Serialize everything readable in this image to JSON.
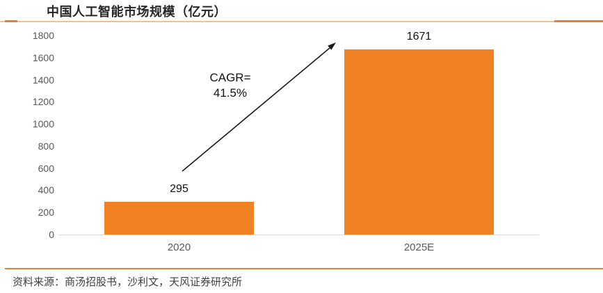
{
  "chart_data": {
    "type": "bar",
    "title": "中国人工智能市场规模（亿元）",
    "categories": [
      "2020",
      "2025E"
    ],
    "values": [
      295,
      1671
    ],
    "data_labels": [
      "295",
      "1671"
    ],
    "ylim": [
      0,
      1800
    ],
    "yticks": [
      0,
      200,
      400,
      600,
      800,
      1000,
      1200,
      1400,
      1600,
      1800
    ],
    "grid": "off",
    "legend": "none",
    "annotation": {
      "line1": "CAGR=",
      "line2": "41.5%"
    }
  },
  "footer": {
    "source": "资料来源：商汤招股书，沙利文，天风证券研究所"
  },
  "colors": {
    "bar": "#F08223",
    "divider_dark": "#ED7D31",
    "divider_light": "#F7C08A",
    "bottom_rule": "#ED7D31",
    "axis_line": "#D9D9D9",
    "tick_text": "#595959",
    "title_text": "#262626",
    "arrow": "#1a1a1a"
  }
}
